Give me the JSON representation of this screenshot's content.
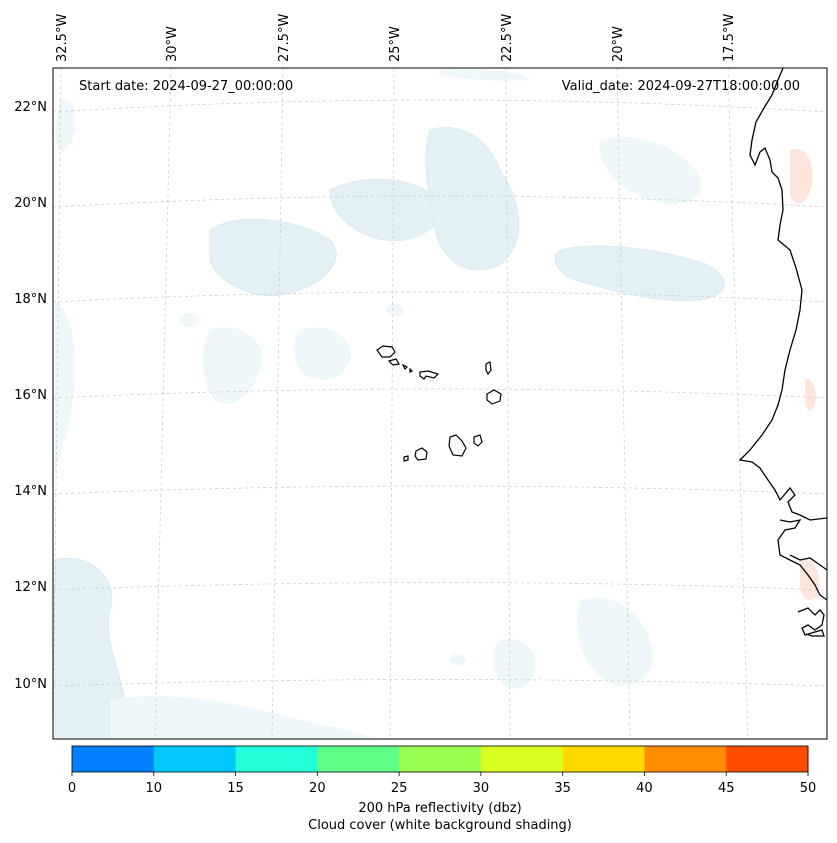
{
  "map": {
    "start_date": "Start date: 2024-09-27_00:00:00",
    "valid_date": "Valid_date: 2024-09-27T18:00:00.00",
    "lon_labels": [
      "32.5°W",
      "30°W",
      "27.5°W",
      "25°W",
      "22.5°W",
      "20°W",
      "17.5°W"
    ],
    "lat_labels": [
      "22°N",
      "20°N",
      "18°N",
      "16°N",
      "14°N",
      "12°N",
      "10°N"
    ]
  },
  "colorbar": {
    "ticks": [
      "0",
      "10",
      "15",
      "20",
      "25",
      "30",
      "35",
      "40",
      "45",
      "50"
    ],
    "colors": [
      "#0080ff",
      "#00c8ff",
      "#20ffd8",
      "#60ff88",
      "#98ff50",
      "#d8ff20",
      "#ffd800",
      "#ff8c00",
      "#ff4c00"
    ],
    "title": "200 hPa reflectivity (dbz)",
    "subtitle": "Cloud cover (white background shading)"
  }
}
